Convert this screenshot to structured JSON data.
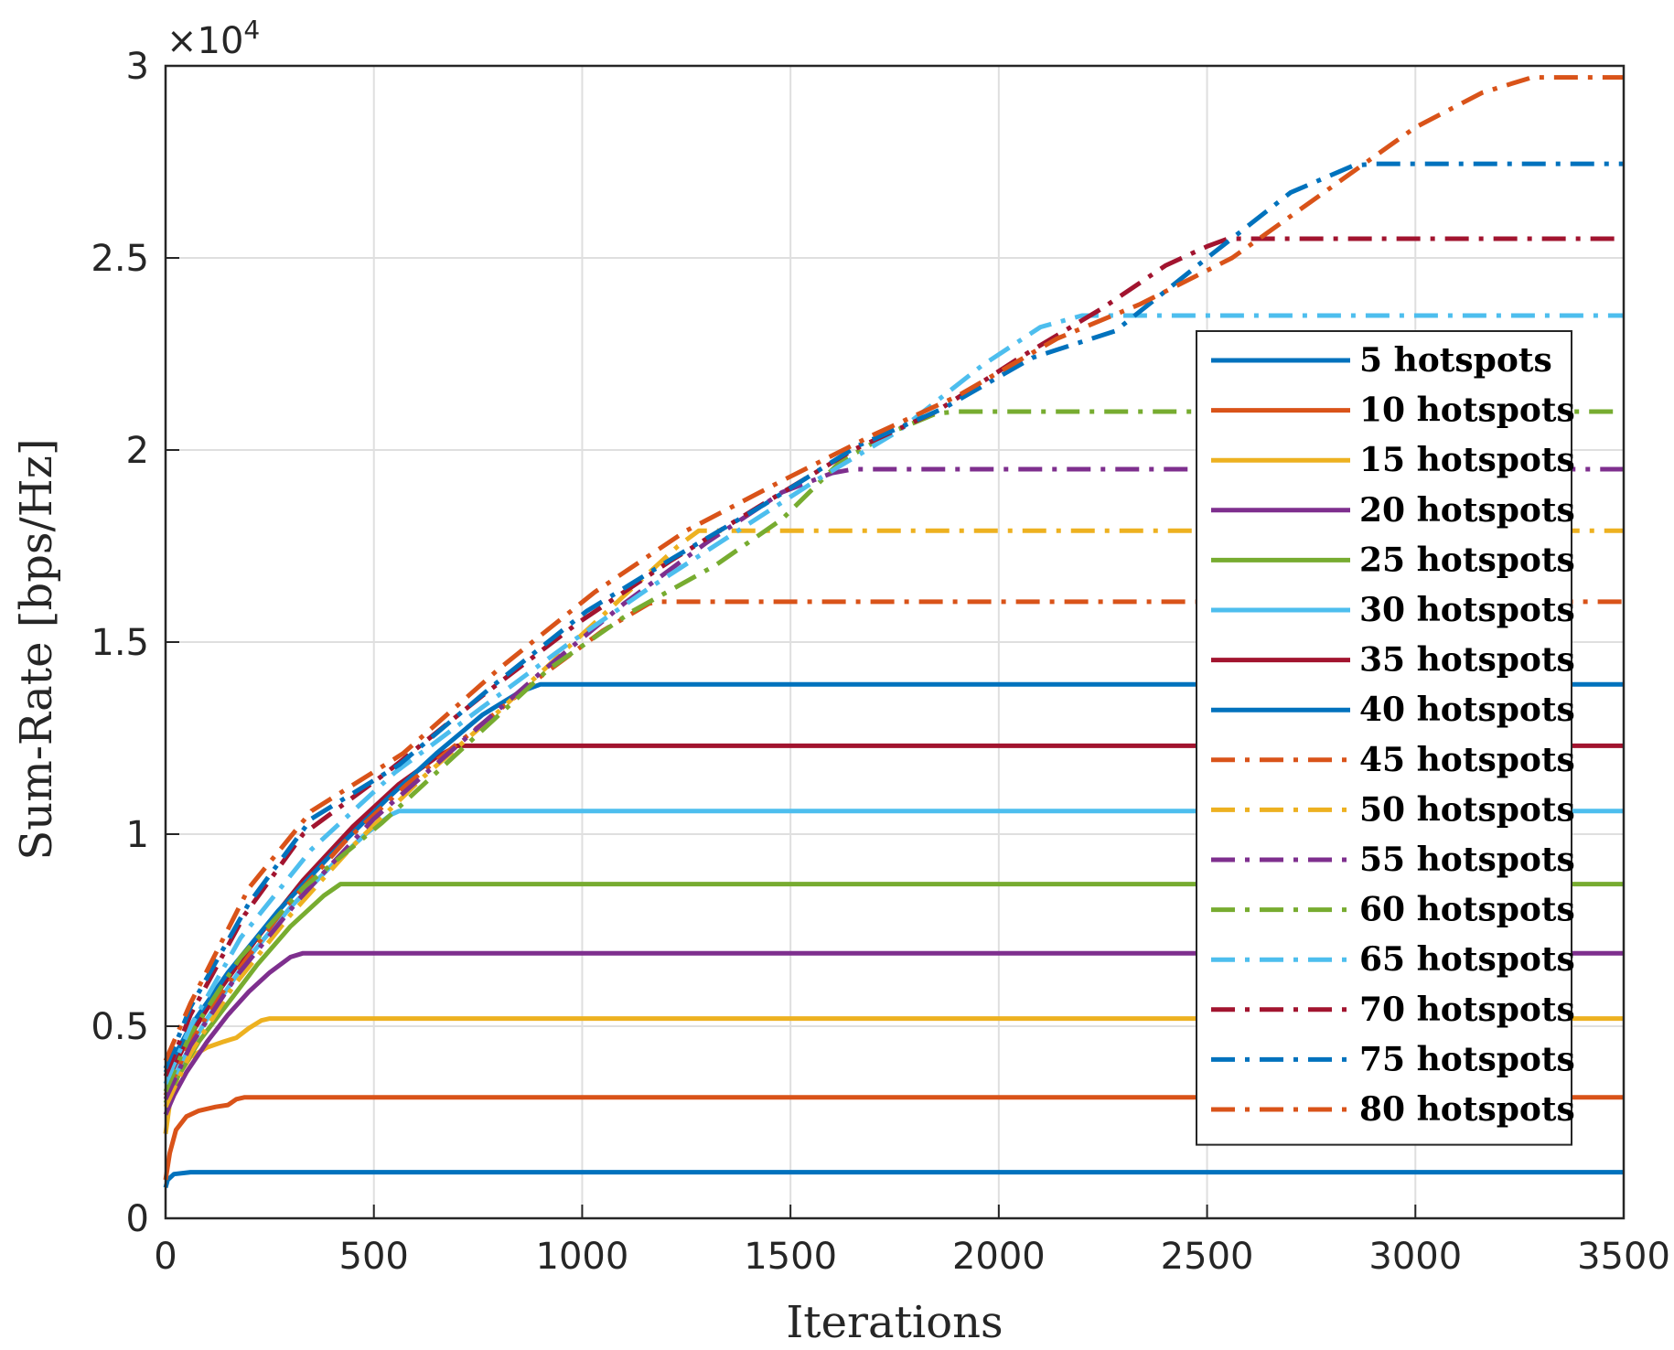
{
  "chart_data": {
    "type": "line",
    "xlabel": "Iterations",
    "ylabel": "Sum-Rate [bps/Hz]",
    "xlim": [
      0,
      3500
    ],
    "ylim": [
      0,
      30000
    ],
    "xticks": [
      0,
      500,
      1000,
      1500,
      2000,
      2500,
      3000,
      3500
    ],
    "xtick_labels": [
      "0",
      "500",
      "1000",
      "1500",
      "2000",
      "2500",
      "3000",
      "3500"
    ],
    "yticks": [
      0,
      5000,
      10000,
      15000,
      20000,
      25000,
      30000
    ],
    "ytick_labels": [
      "0",
      "0.5",
      "1",
      "1.5",
      "2",
      "2.5",
      "3"
    ],
    "y_exponent_base": "×10",
    "y_exponent_power": "4",
    "grid": true,
    "legend_position": "right",
    "series": [
      {
        "name": "5 hotspots",
        "color": "#0072BD",
        "style": "solid",
        "points": [
          [
            0,
            800
          ],
          [
            5,
            1000
          ],
          [
            20,
            1150
          ],
          [
            60,
            1200
          ],
          [
            3500,
            1200
          ]
        ]
      },
      {
        "name": "10 hotspots",
        "color": "#D95319",
        "style": "solid",
        "points": [
          [
            0,
            1000
          ],
          [
            10,
            1700
          ],
          [
            25,
            2300
          ],
          [
            50,
            2650
          ],
          [
            80,
            2800
          ],
          [
            120,
            2900
          ],
          [
            150,
            2950
          ],
          [
            170,
            3100
          ],
          [
            190,
            3150
          ],
          [
            3500,
            3150
          ]
        ]
      },
      {
        "name": "15 hotspots",
        "color": "#EDB120",
        "style": "solid",
        "points": [
          [
            0,
            2200
          ],
          [
            10,
            3000
          ],
          [
            30,
            3700
          ],
          [
            60,
            4200
          ],
          [
            100,
            4450
          ],
          [
            140,
            4600
          ],
          [
            170,
            4700
          ],
          [
            200,
            4950
          ],
          [
            230,
            5150
          ],
          [
            250,
            5200
          ],
          [
            3500,
            5200
          ]
        ]
      },
      {
        "name": "20 hotspots",
        "color": "#7E2F8E",
        "style": "solid",
        "points": [
          [
            0,
            2700
          ],
          [
            20,
            3200
          ],
          [
            50,
            3800
          ],
          [
            100,
            4600
          ],
          [
            150,
            5300
          ],
          [
            200,
            5900
          ],
          [
            250,
            6400
          ],
          [
            300,
            6800
          ],
          [
            330,
            6900
          ],
          [
            3500,
            6900
          ]
        ]
      },
      {
        "name": "25 hotspots",
        "color": "#77AC30",
        "style": "solid",
        "points": [
          [
            0,
            3000
          ],
          [
            30,
            3700
          ],
          [
            80,
            4600
          ],
          [
            150,
            5600
          ],
          [
            220,
            6600
          ],
          [
            300,
            7600
          ],
          [
            380,
            8400
          ],
          [
            420,
            8700
          ],
          [
            3500,
            8700
          ]
        ]
      },
      {
        "name": "30 hotspots",
        "color": "#4DBEEE",
        "style": "solid",
        "points": [
          [
            0,
            3200
          ],
          [
            40,
            4100
          ],
          [
            100,
            5200
          ],
          [
            200,
            6800
          ],
          [
            300,
            8100
          ],
          [
            400,
            9200
          ],
          [
            480,
            10000
          ],
          [
            540,
            10500
          ],
          [
            560,
            10600
          ],
          [
            3500,
            10600
          ]
        ]
      },
      {
        "name": "35 hotspots",
        "color": "#A2142F",
        "style": "solid",
        "points": [
          [
            0,
            3500
          ],
          [
            50,
            4600
          ],
          [
            120,
            5800
          ],
          [
            220,
            7300
          ],
          [
            330,
            8800
          ],
          [
            450,
            10200
          ],
          [
            560,
            11300
          ],
          [
            650,
            12000
          ],
          [
            700,
            12300
          ],
          [
            3500,
            12300
          ]
        ]
      },
      {
        "name": "40 hotspots",
        "color": "#0072BD",
        "style": "solid",
        "points": [
          [
            0,
            3800
          ],
          [
            60,
            5000
          ],
          [
            150,
            6400
          ],
          [
            270,
            8000
          ],
          [
            400,
            9500
          ],
          [
            530,
            10900
          ],
          [
            650,
            12100
          ],
          [
            760,
            13100
          ],
          [
            850,
            13700
          ],
          [
            900,
            13900
          ],
          [
            3500,
            13900
          ]
        ]
      },
      {
        "name": "45 hotspots",
        "color": "#D95319",
        "style": "dashdot",
        "points": [
          [
            0,
            3200
          ],
          [
            60,
            4600
          ],
          [
            150,
            6100
          ],
          [
            280,
            8000
          ],
          [
            430,
            9800
          ],
          [
            580,
            11300
          ],
          [
            740,
            12700
          ],
          [
            900,
            14100
          ],
          [
            1050,
            15300
          ],
          [
            1160,
            16000
          ],
          [
            1180,
            16050
          ],
          [
            3500,
            16050
          ]
        ]
      },
      {
        "name": "50 hotspots",
        "color": "#EDB120",
        "style": "dashdot",
        "points": [
          [
            0,
            2900
          ],
          [
            60,
            4300
          ],
          [
            160,
            6000
          ],
          [
            300,
            7900
          ],
          [
            450,
            9700
          ],
          [
            620,
            11500
          ],
          [
            800,
            13200
          ],
          [
            980,
            15000
          ],
          [
            1130,
            16500
          ],
          [
            1230,
            17500
          ],
          [
            1280,
            17900
          ],
          [
            3500,
            17900
          ]
        ]
      },
      {
        "name": "55 hotspots",
        "color": "#7E2F8E",
        "style": "dashdot",
        "points": [
          [
            0,
            3100
          ],
          [
            60,
            4500
          ],
          [
            170,
            6300
          ],
          [
            320,
            8300
          ],
          [
            500,
            10400
          ],
          [
            700,
            12300
          ],
          [
            900,
            14200
          ],
          [
            1100,
            16000
          ],
          [
            1300,
            17600
          ],
          [
            1480,
            18900
          ],
          [
            1600,
            19400
          ],
          [
            1650,
            19500
          ],
          [
            3500,
            19500
          ]
        ]
      },
      {
        "name": "60 hotspots",
        "color": "#77AC30",
        "style": "dashdot",
        "points": [
          [
            0,
            3300
          ],
          [
            60,
            4800
          ],
          [
            180,
            6800
          ],
          [
            330,
            8600
          ],
          [
            520,
            10300
          ],
          [
            720,
            12300
          ],
          [
            920,
            14300
          ],
          [
            1120,
            15800
          ],
          [
            1320,
            17000
          ],
          [
            1480,
            18200
          ],
          [
            1620,
            19700
          ],
          [
            1750,
            20500
          ],
          [
            1850,
            20950
          ],
          [
            1900,
            21000
          ],
          [
            3500,
            21000
          ]
        ]
      },
      {
        "name": "65 hotspots",
        "color": "#4DBEEE",
        "style": "dashdot",
        "points": [
          [
            0,
            3500
          ],
          [
            60,
            5000
          ],
          [
            180,
            7300
          ],
          [
            350,
            9600
          ],
          [
            550,
            11600
          ],
          [
            760,
            13300
          ],
          [
            960,
            14900
          ],
          [
            1160,
            16400
          ],
          [
            1360,
            17800
          ],
          [
            1560,
            19200
          ],
          [
            1760,
            20500
          ],
          [
            1960,
            22200
          ],
          [
            2100,
            23200
          ],
          [
            2200,
            23500
          ],
          [
            3500,
            23500
          ]
        ]
      },
      {
        "name": "70 hotspots",
        "color": "#A2142F",
        "style": "dashdot",
        "points": [
          [
            0,
            3700
          ],
          [
            60,
            5300
          ],
          [
            190,
            7900
          ],
          [
            330,
            10000
          ],
          [
            530,
            11600
          ],
          [
            760,
            13600
          ],
          [
            990,
            15500
          ],
          [
            1210,
            17100
          ],
          [
            1420,
            18500
          ],
          [
            1650,
            20000
          ],
          [
            1850,
            21000
          ],
          [
            2050,
            22400
          ],
          [
            2250,
            23700
          ],
          [
            2400,
            24800
          ],
          [
            2500,
            25300
          ],
          [
            2550,
            25500
          ],
          [
            3500,
            25500
          ]
        ]
      },
      {
        "name": "75 hotspots",
        "color": "#0072BD",
        "style": "dashdot",
        "points": [
          [
            0,
            3900
          ],
          [
            60,
            5500
          ],
          [
            200,
            8200
          ],
          [
            350,
            10400
          ],
          [
            560,
            11800
          ],
          [
            790,
            13900
          ],
          [
            1010,
            15800
          ],
          [
            1220,
            17200
          ],
          [
            1440,
            18600
          ],
          [
            1660,
            20100
          ],
          [
            1870,
            21100
          ],
          [
            2080,
            22400
          ],
          [
            2280,
            23100
          ],
          [
            2500,
            25000
          ],
          [
            2700,
            26700
          ],
          [
            2850,
            27400
          ],
          [
            2900,
            27450
          ],
          [
            3500,
            27450
          ]
        ]
      },
      {
        "name": "80 hotspots",
        "color": "#D95319",
        "style": "dashdot",
        "points": [
          [
            0,
            4100
          ],
          [
            60,
            5600
          ],
          [
            200,
            8600
          ],
          [
            350,
            10600
          ],
          [
            570,
            12100
          ],
          [
            800,
            14300
          ],
          [
            1030,
            16300
          ],
          [
            1250,
            17900
          ],
          [
            1480,
            19200
          ],
          [
            1700,
            20400
          ],
          [
            1900,
            21400
          ],
          [
            2140,
            22900
          ],
          [
            2340,
            23800
          ],
          [
            2560,
            25000
          ],
          [
            2780,
            26700
          ],
          [
            3000,
            28400
          ],
          [
            3160,
            29300
          ],
          [
            3280,
            29700
          ],
          [
            3500,
            29700
          ]
        ]
      }
    ]
  }
}
